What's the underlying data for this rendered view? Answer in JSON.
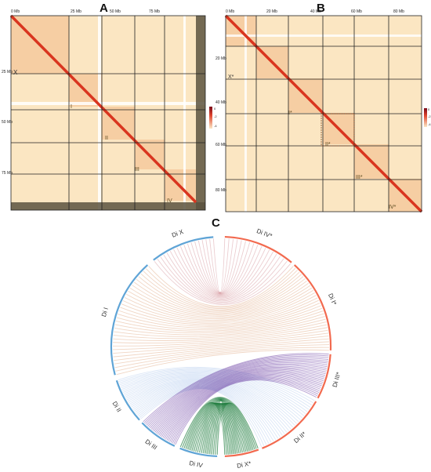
{
  "panels": {
    "A": {
      "letter": "A",
      "axis_ticks": [
        "0 Mb",
        "25 Mb",
        "50 Mb",
        "75 Mb"
      ],
      "chrom_labels": [
        "X",
        "I",
        "II",
        "III",
        "IV"
      ],
      "scale_ticks": [
        "0",
        "-2",
        "-4"
      ],
      "colors": {
        "diag": "#e0462f",
        "bg": "#fbe8c6",
        "grid": "#222222"
      }
    },
    "B": {
      "letter": "B",
      "axis_ticks": [
        "0 Mb",
        "20 Mb",
        "40 Mb",
        "60 Mb",
        "80 Mb"
      ],
      "left_ticks": [
        "20 Mb",
        "40 Mb",
        "60 Mb",
        "80 Mb"
      ],
      "chrom_labels": [
        "X*",
        "I*",
        "II*",
        "III*",
        "IV*"
      ],
      "scale_ticks": [
        "0",
        "-2",
        "-4"
      ],
      "colors": {
        "diag": "#e0462f",
        "bg": "#fbe8c6",
        "grid": "#222222"
      }
    },
    "C": {
      "letter": "C",
      "segments_left": [
        "Di X",
        "Di I",
        "Di II",
        "Di III",
        "Di IV"
      ],
      "segments_right": [
        "Di IV*",
        "Di I*",
        "Di III*",
        "Di II*",
        "Di X*"
      ],
      "colors": {
        "left_arc": "#5fa4d6",
        "right_arc": "#f26a4f",
        "X": "#a61b2b",
        "I": "#c86a2a",
        "II": "#3b7bd0",
        "III": "#5a2a9a",
        "IV": "#1a7a3a"
      }
    }
  }
}
